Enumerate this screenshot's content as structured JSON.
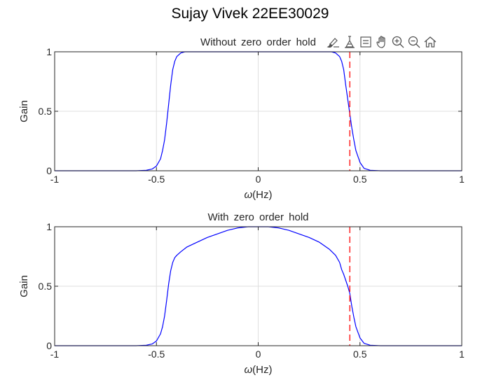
{
  "figure": {
    "suptitle": "Sujay Vivek 22EE30029"
  },
  "toolbar": {
    "icons": [
      "brush-icon",
      "data-tips-icon",
      "legend-icon",
      "pan-hand-icon",
      "zoom-in-icon",
      "zoom-out-icon",
      "home-icon"
    ]
  },
  "colors": {
    "curve": "#0000ff",
    "cutoff_line": "#ff0000",
    "axes": "#262626",
    "grid": "#dfdfdf"
  },
  "chart_data": [
    {
      "type": "line",
      "title": "Without  zero  order  hold",
      "xlabel_symbol": "ω",
      "xlabel_unit": "(Hz)",
      "ylabel": "Gain",
      "xlim": [
        -1,
        1
      ],
      "ylim": [
        0,
        1
      ],
      "xticks": [
        -1,
        -0.5,
        0,
        0.5,
        1
      ],
      "xtick_labels": [
        "-1",
        "-0.5",
        "0",
        "0.5",
        "1"
      ],
      "yticks": [
        0,
        0.5,
        1
      ],
      "ytick_labels": [
        "0",
        "0.5",
        "1"
      ],
      "grid": true,
      "vline_x": 0.45,
      "series": [
        {
          "x": [
            -1,
            -0.6,
            -0.55,
            -0.52,
            -0.5,
            -0.48,
            -0.47,
            -0.46,
            -0.45,
            -0.44,
            -0.43,
            -0.42,
            -0.41,
            -0.4,
            -0.38,
            -0.36,
            -0.34,
            -0.3,
            0,
            0.3,
            0.34,
            0.36,
            0.38,
            0.4,
            0.41,
            0.42,
            0.43,
            0.44,
            0.45,
            0.46,
            0.47,
            0.48,
            0.5,
            0.52,
            0.55,
            0.6,
            1
          ],
          "y": [
            0,
            0,
            0.004,
            0.015,
            0.04,
            0.1,
            0.17,
            0.26,
            0.4,
            0.56,
            0.72,
            0.85,
            0.92,
            0.96,
            0.99,
            1,
            1,
            1,
            1,
            1,
            1,
            1,
            0.99,
            0.96,
            0.92,
            0.85,
            0.72,
            0.6,
            0.48,
            0.36,
            0.26,
            0.17,
            0.07,
            0.02,
            0.004,
            0,
            0
          ]
        }
      ]
    },
    {
      "type": "line",
      "title": "With  zero  order  hold",
      "xlabel_symbol": "ω",
      "xlabel_unit": "(Hz)",
      "ylabel": "Gain",
      "xlim": [
        -1,
        1
      ],
      "ylim": [
        0,
        1
      ],
      "xticks": [
        -1,
        -0.5,
        0,
        0.5,
        1
      ],
      "xtick_labels": [
        "-1",
        "-0.5",
        "0",
        "0.5",
        "1"
      ],
      "yticks": [
        0,
        0.5,
        1
      ],
      "ytick_labels": [
        "0",
        "0.5",
        "1"
      ],
      "grid": true,
      "vline_x": 0.45,
      "series": [
        {
          "x": [
            -1,
            -0.6,
            -0.55,
            -0.52,
            -0.5,
            -0.48,
            -0.47,
            -0.46,
            -0.45,
            -0.44,
            -0.43,
            -0.42,
            -0.41,
            -0.4,
            -0.38,
            -0.35,
            -0.3,
            -0.25,
            -0.2,
            -0.15,
            -0.1,
            -0.05,
            0,
            0.05,
            0.1,
            0.15,
            0.2,
            0.25,
            0.3,
            0.35,
            0.38,
            0.4,
            0.41,
            0.42,
            0.43,
            0.44,
            0.45,
            0.46,
            0.47,
            0.48,
            0.5,
            0.52,
            0.55,
            0.6,
            1
          ],
          "y": [
            0,
            0,
            0.004,
            0.015,
            0.04,
            0.1,
            0.16,
            0.25,
            0.38,
            0.52,
            0.63,
            0.7,
            0.74,
            0.76,
            0.79,
            0.83,
            0.87,
            0.91,
            0.94,
            0.97,
            0.99,
            1,
            1,
            1,
            0.99,
            0.97,
            0.94,
            0.91,
            0.87,
            0.81,
            0.76,
            0.7,
            0.64,
            0.6,
            0.55,
            0.5,
            0.44,
            0.33,
            0.24,
            0.16,
            0.065,
            0.02,
            0.004,
            0,
            0
          ]
        }
      ]
    }
  ]
}
